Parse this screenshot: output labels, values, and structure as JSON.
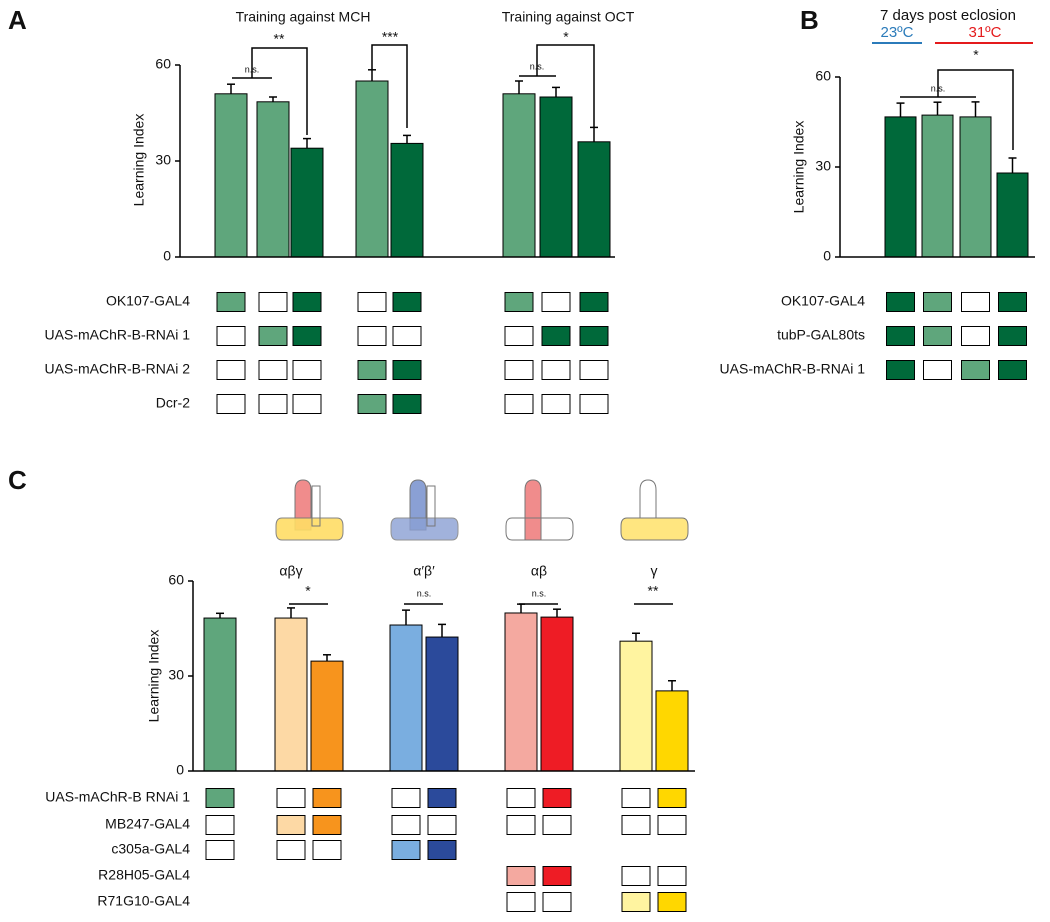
{
  "chart_data": [
    {
      "type": "bar",
      "label": "A",
      "groups": [
        "Training against MCH",
        "Training against OCT"
      ],
      "y_label": "Learning Index",
      "ylim": [
        0,
        60
      ],
      "yticks": [
        0,
        30,
        60
      ],
      "values": [
        51,
        48.5,
        34,
        55,
        35.5,
        51,
        50,
        36
      ],
      "errors": [
        3,
        1.5,
        3,
        3.5,
        2.5,
        4,
        3,
        4.5
      ],
      "colors": [
        "#5fa67c",
        "#5fa67c",
        "#00693a",
        "#5fa67c",
        "#00693a",
        "#5fa67c",
        "#00693a",
        "#00693a"
      ],
      "significance": [
        "n.s.",
        "**",
        "***",
        "n.s.",
        "*"
      ],
      "rows": [
        {
          "name": "OK107-GAL4",
          "cells": [
            "#5fa67c",
            "#ffffff",
            "#00693a",
            "#ffffff",
            "#00693a",
            "#5fa67c",
            "#ffffff",
            "#00693a"
          ]
        },
        {
          "name": "UAS-mAChR-B-RNAi 1",
          "cells": [
            "#ffffff",
            "#5fa67c",
            "#00693a",
            "#ffffff",
            "#ffffff",
            "#ffffff",
            "#00693a",
            "#00693a"
          ]
        },
        {
          "name": "UAS-mAChR-B-RNAi 2",
          "cells": [
            "#ffffff",
            "#ffffff",
            "#ffffff",
            "#5fa67c",
            "#00693a",
            "#ffffff",
            "#ffffff",
            "#ffffff"
          ]
        },
        {
          "name": "Dcr-2",
          "cells": [
            "#ffffff",
            "#ffffff",
            "#ffffff",
            "#5fa67c",
            "#00693a",
            "#ffffff",
            "#ffffff",
            "#ffffff"
          ]
        }
      ]
    },
    {
      "type": "bar",
      "label": "B",
      "title": "7 days post eclosion",
      "y_label": "Learning Index",
      "temperatures": [
        {
          "label": "23ºC",
          "color": "#2b7bba"
        },
        {
          "label": "31ºC",
          "color": "#e41a1c"
        }
      ],
      "ylim": [
        0,
        60
      ],
      "yticks": [
        0,
        30,
        60
      ],
      "values": [
        46.7,
        47.3,
        46.7,
        28
      ],
      "errors": [
        4.6,
        4.3,
        5,
        5
      ],
      "colors": [
        "#00693a",
        "#5fa67c",
        "#5fa67c",
        "#00693a"
      ],
      "significance": [
        "n.s.",
        "*"
      ],
      "rows": [
        {
          "name": "OK107-GAL4",
          "cells": [
            "#00693a",
            "#5fa67c",
            "#ffffff",
            "#00693a"
          ]
        },
        {
          "name": "tubP-GAL80ts",
          "cells": [
            "#00693a",
            "#5fa67c",
            "#ffffff",
            "#00693a"
          ]
        },
        {
          "name": "UAS-mAChR-B-RNAi 1",
          "cells": [
            "#00693a",
            "#ffffff",
            "#5fa67c",
            "#00693a"
          ]
        }
      ]
    },
    {
      "type": "bar",
      "label": "C",
      "groups": [
        "αβγ",
        "α′β′",
        "αβ",
        "γ"
      ],
      "y_label": "Learning Index",
      "ylim": [
        0,
        60
      ],
      "yticks": [
        0,
        30,
        60
      ],
      "values": [
        48.3,
        48.3,
        34.7,
        46.1,
        42.3,
        49.9,
        48.6,
        41,
        25.3
      ],
      "errors": [
        1.5,
        3.2,
        2,
        4.7,
        4,
        2.8,
        2.5,
        2.5,
        3.2
      ],
      "colors": [
        "#5fa67c",
        "#fdd9a5",
        "#f7941d",
        "#7aaee0",
        "#2b4a9b",
        "#f4a9a0",
        "#ee1c25",
        "#fff4a0",
        "#ffd700"
      ],
      "significance": [
        "*",
        "n.s.",
        "n.s.",
        "**"
      ],
      "rows": [
        {
          "name": "UAS-mAChR-B RNAi 1",
          "cells": [
            "#5fa67c",
            "#ffffff",
            "#f7941d",
            "#ffffff",
            "#2b4a9b",
            "#ffffff",
            "#ee1c25",
            "#ffffff",
            "#ffd700"
          ]
        },
        {
          "name": "MB247-GAL4",
          "cells": [
            "#ffffff",
            "#fdd9a5",
            "#f7941d",
            "#ffffff",
            "#ffffff",
            "#ffffff",
            "#ffffff",
            "#ffffff",
            "#ffffff"
          ]
        },
        {
          "name": "c305a-GAL4",
          "cells": [
            "#ffffff",
            "#ffffff",
            "#ffffff",
            "#7aaee0",
            "#2b4a9b",
            null,
            null,
            null,
            null
          ]
        },
        {
          "name": "R28H05-GAL4",
          "cells": [
            null,
            null,
            null,
            null,
            null,
            "#f4a9a0",
            "#ee1c25",
            "#ffffff",
            "#ffffff"
          ]
        },
        {
          "name": "R71G10-GAL4",
          "cells": [
            null,
            null,
            null,
            null,
            null,
            "#ffffff",
            "#ffffff",
            "#fff4a0",
            "#ffd700"
          ]
        }
      ]
    }
  ]
}
